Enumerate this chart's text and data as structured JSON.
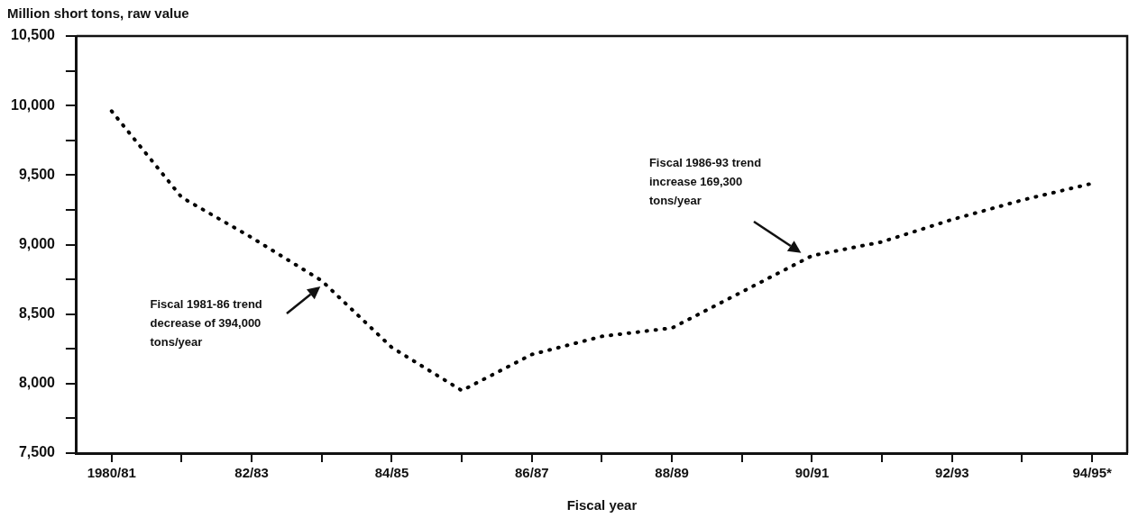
{
  "chart_data": {
    "type": "line",
    "title": "Million short tons, raw value",
    "xlabel": "Fiscal year",
    "categories": [
      "1980/81",
      null,
      "82/83",
      null,
      "84/85",
      null,
      "86/87",
      null,
      "88/89",
      null,
      "90/91",
      null,
      "92/93",
      null,
      "94/95*"
    ],
    "series": [
      {
        "color": "#000000",
        "values": [
          9960,
          9340,
          9050,
          8740,
          8260,
          7950,
          8210,
          8340,
          8400,
          8660,
          8920,
          9020,
          9180,
          9320,
          9440
        ]
      }
    ],
    "ylim": [
      7500,
      10500
    ],
    "yticks": [
      {
        "value": 7500,
        "label": "7,500"
      },
      {
        "value": 7750,
        "label": null
      },
      {
        "value": 8000,
        "label": "8,000"
      },
      {
        "value": 8250,
        "label": null
      },
      {
        "value": 8500,
        "label": "8,500"
      },
      {
        "value": 8750,
        "label": null
      },
      {
        "value": 9000,
        "label": "9,000"
      },
      {
        "value": 9250,
        "label": null
      },
      {
        "value": 9500,
        "label": "9,500"
      },
      {
        "value": 9750,
        "label": null
      },
      {
        "value": 10000,
        "label": "10,000"
      },
      {
        "value": 10250,
        "label": null
      },
      {
        "value": 10500,
        "label": "10,500"
      }
    ],
    "annotations": [
      "Fiscal 1981-86 trend decrease of 394,000 tons/year",
      "Fiscal 1986-93 trend increase 169,300 tons/year"
    ],
    "grid": false,
    "legend": false,
    "marker": "none",
    "line_style": "dotted"
  }
}
